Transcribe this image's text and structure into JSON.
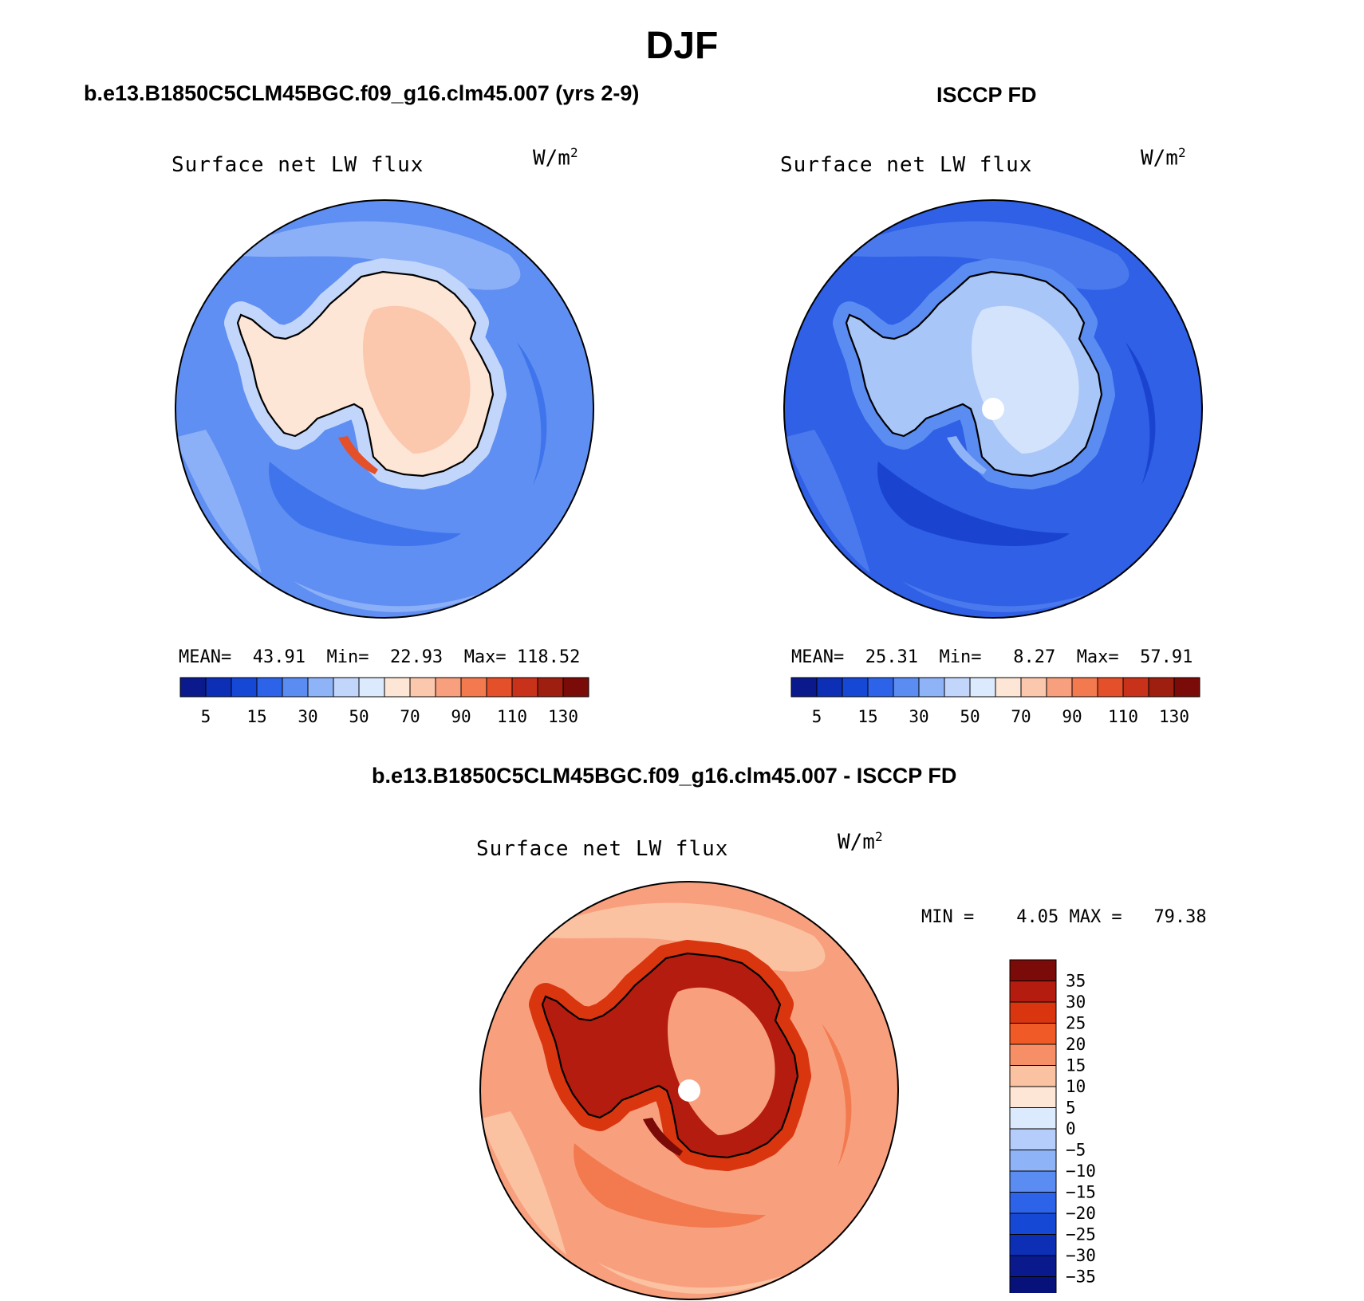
{
  "page_title": "DJF",
  "colors": {
    "coastline": "#000000",
    "map_border": "#000000",
    "pole_hole": "#ffffff"
  },
  "panels": [
    {
      "id": "model",
      "title": "b.e13.B1850C5CLM45BGC.f09_g16.clm45.007 (yrs 2-9)",
      "variable": "Surface net LW flux",
      "units": "W/m",
      "units_sup": "2",
      "stats": {
        "mean_label": "MEAN=",
        "mean": "43.91",
        "min_label": "Min=",
        "min": "22.93",
        "max_label": "Max=",
        "max": "118.52"
      },
      "colorbar": {
        "colors": [
          "#0a1a8c",
          "#0c2fb6",
          "#1648d6",
          "#2d63e8",
          "#5b8cf2",
          "#8fb3f7",
          "#c2d6fb",
          "#dbeafc",
          "#fde6d6",
          "#fbc7ad",
          "#f8a07e",
          "#f37a4f",
          "#e4502a",
          "#c8321a",
          "#9e1e10",
          "#7a0b08"
        ],
        "tick_labels": [
          "5",
          "15",
          "30",
          "50",
          "70",
          "90",
          "110",
          "130"
        ]
      },
      "fill": {
        "ocean": "#5f8ff2",
        "ocean_light": "#8cb0f7",
        "ocean_dark": "#3f74ec",
        "ice_edge": "#c2d6fb",
        "continent": "#fde6d6",
        "continent_warm": "#fbc7ad",
        "hotspot": "#e4502a"
      },
      "pole_hole": false
    },
    {
      "id": "obs",
      "title": "ISCCP FD",
      "variable": "Surface net LW flux",
      "units": "W/m",
      "units_sup": "2",
      "stats": {
        "mean_label": "MEAN=",
        "mean": "25.31",
        "min_label": "Min=",
        "min": "8.27",
        "max_label": "Max=",
        "max": "57.91"
      },
      "colorbar": {
        "colors": [
          "#0a1a8c",
          "#0c2fb6",
          "#1648d6",
          "#2d63e8",
          "#5b8cf2",
          "#8fb3f7",
          "#c2d6fb",
          "#dbeafc",
          "#fde6d6",
          "#fbc7ad",
          "#f8a07e",
          "#f37a4f",
          "#e4502a",
          "#c8321a",
          "#9e1e10",
          "#7a0b08"
        ],
        "tick_labels": [
          "5",
          "15",
          "30",
          "50",
          "70",
          "90",
          "110",
          "130"
        ]
      },
      "fill": {
        "ocean": "#2f60e6",
        "ocean_light": "#4a79ee",
        "ocean_dark": "#1a44cf",
        "ice_edge": "#5b8cf2",
        "continent": "#a9c6f8",
        "continent_warm": "#d3e3fc",
        "hotspot": "#8fb3f7"
      },
      "pole_hole": true
    },
    {
      "id": "diff",
      "title": "b.e13.B1850C5CLM45BGC.f09_g16.clm45.007 - ISCCP FD",
      "variable": "Surface net LW flux",
      "units": "W/m",
      "units_sup": "2",
      "stats": {
        "min_label": "MIN =",
        "min": "4.05",
        "max_label": "MAX =",
        "max": "79.38"
      },
      "colorbar": {
        "colors": [
          "#7a0b08",
          "#b41c0f",
          "#d9360f",
          "#f05a26",
          "#f78f66",
          "#fbc2a2",
          "#fde6d6",
          "#dbeafc",
          "#b5cdfa",
          "#8fb3f7",
          "#5b8cf2",
          "#2d63e8",
          "#1648d6",
          "#0c2fb6",
          "#0a1a8c",
          "#06127a"
        ],
        "tick_labels": [
          "35",
          "30",
          "25",
          "20",
          "15",
          "10",
          "5",
          "0",
          "−5",
          "−10",
          "−15",
          "−20",
          "−25",
          "−30",
          "−35"
        ]
      },
      "fill": {
        "ocean": "#f8a07e",
        "ocean_light": "#fbc2a2",
        "ocean_dark": "#f37a4f",
        "ice_edge": "#d9360f",
        "continent": "#b41c0f",
        "continent_warm": "#f8a07e",
        "hotspot": "#7a0b08"
      },
      "pole_hole": true
    }
  ]
}
